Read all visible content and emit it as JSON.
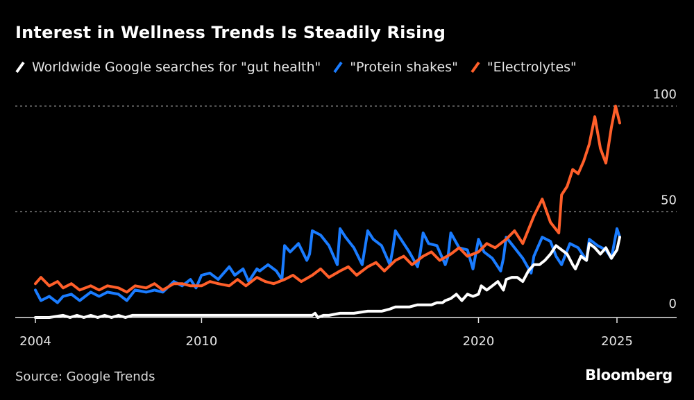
{
  "title": "Interest in Wellness Trends Is Steadily Rising",
  "source": "Source: Google Trends",
  "brand": "Bloomberg",
  "legend": [
    {
      "label": "Worldwide Google searches for \"gut health\"",
      "color": "#ffffff",
      "icon": "line-swatch-icon"
    },
    {
      "label": "\"Protein shakes\"",
      "color": "#1a7cff",
      "icon": "line-swatch-icon"
    },
    {
      "label": "\"Electrolytes\"",
      "color": "#ff5f2a",
      "icon": "line-swatch-icon"
    }
  ],
  "chart_data": {
    "type": "line",
    "title": "Interest in Wellness Trends Is Steadily Rising",
    "xlabel": "",
    "ylabel": "",
    "xlim": [
      2003.3,
      2027.5
    ],
    "ylim": [
      0,
      100
    ],
    "x_ticks": [
      2004,
      2010,
      2020,
      2025
    ],
    "x_tick_labels": [
      "2004",
      "2010",
      "2020",
      "2025"
    ],
    "y_ticks": [
      0,
      50,
      100
    ],
    "y_tick_labels": [
      "0",
      "50",
      "100"
    ],
    "grid": "horizontal dotted at 50 and 100",
    "legend_position": "top",
    "series": [
      {
        "name": "Worldwide Google searches for \"gut health\"",
        "color": "#ffffff",
        "x": [
          2004.0,
          2004.5,
          2005.0,
          2005.25,
          2005.5,
          2005.75,
          2006.0,
          2006.25,
          2006.5,
          2006.75,
          2007.0,
          2007.25,
          2007.5,
          2008.0,
          2009.0,
          2010.0,
          2011.0,
          2012.0,
          2013.0,
          2014.0,
          2014.1,
          2014.2,
          2014.4,
          2014.6,
          2015.0,
          2015.5,
          2016.0,
          2016.3,
          2016.5,
          2016.8,
          2017.0,
          2017.3,
          2017.5,
          2017.8,
          2018.0,
          2018.3,
          2018.5,
          2018.7,
          2018.8,
          2019.0,
          2019.2,
          2019.4,
          2019.6,
          2019.8,
          2020.0,
          2020.1,
          2020.3,
          2020.5,
          2020.7,
          2020.9,
          2021.0,
          2021.2,
          2021.4,
          2021.6,
          2021.8,
          2022.0,
          2022.2,
          2022.4,
          2022.6,
          2022.8,
          2023.0,
          2023.2,
          2023.4,
          2023.5,
          2023.7,
          2023.9,
          2024.0,
          2024.2,
          2024.4,
          2024.6,
          2024.8,
          2025.0,
          2025.1
        ],
        "values": [
          0,
          0,
          1,
          0,
          1,
          0,
          1,
          0,
          1,
          0,
          1,
          0,
          1,
          1,
          1,
          1,
          1,
          1,
          1,
          1,
          2,
          0,
          1,
          1,
          2,
          2,
          3,
          3,
          3,
          4,
          5,
          5,
          5,
          6,
          6,
          6,
          7,
          7,
          8,
          9,
          11,
          8,
          11,
          10,
          11,
          15,
          13,
          15,
          17,
          13,
          18,
          19,
          19,
          17,
          22,
          25,
          25,
          27,
          30,
          34,
          32,
          30,
          25,
          23,
          29,
          27,
          35,
          33,
          30,
          33,
          28,
          32,
          38
        ],
        "_note": "approximate monthly/quarterly readings, 0-100 scale"
      },
      {
        "name": "\"Protein shakes\"",
        "color": "#1a7cff",
        "x": [
          2004.0,
          2004.2,
          2004.5,
          2004.8,
          2005.0,
          2005.3,
          2005.6,
          2006.0,
          2006.3,
          2006.6,
          2007.0,
          2007.3,
          2007.6,
          2008.0,
          2008.3,
          2008.6,
          2009.0,
          2009.3,
          2009.6,
          2009.8,
          2010.0,
          2010.3,
          2010.6,
          2011.0,
          2011.2,
          2011.5,
          2011.7,
          2012.0,
          2012.1,
          2012.4,
          2012.7,
          2012.9,
          2013.0,
          2013.2,
          2013.5,
          2013.8,
          2013.9,
          2014.0,
          2014.3,
          2014.6,
          2014.9,
          2015.0,
          2015.2,
          2015.5,
          2015.8,
          2015.9,
          2016.0,
          2016.2,
          2016.5,
          2016.8,
          2016.9,
          2017.0,
          2017.2,
          2017.5,
          2017.8,
          2017.9,
          2018.0,
          2018.2,
          2018.5,
          2018.8,
          2018.9,
          2019.0,
          2019.3,
          2019.6,
          2019.8,
          2019.9,
          2020.0,
          2020.2,
          2020.5,
          2020.8,
          2020.9,
          2021.0,
          2021.3,
          2021.6,
          2021.9,
          2022.0,
          2022.3,
          2022.6,
          2022.8,
          2023.0,
          2023.3,
          2023.6,
          2023.9,
          2024.0,
          2024.3,
          2024.6,
          2024.8,
          2025.0,
          2025.1
        ],
        "values": [
          13,
          8,
          10,
          7,
          10,
          11,
          8,
          12,
          10,
          12,
          11,
          8,
          13,
          12,
          13,
          12,
          17,
          15,
          18,
          14,
          20,
          21,
          18,
          24,
          20,
          23,
          17,
          23,
          22,
          25,
          22,
          18,
          34,
          31,
          35,
          27,
          30,
          41,
          39,
          34,
          25,
          42,
          38,
          33,
          25,
          33,
          41,
          37,
          34,
          25,
          32,
          41,
          37,
          31,
          24,
          31,
          40,
          35,
          34,
          25,
          29,
          40,
          33,
          32,
          23,
          30,
          37,
          31,
          28,
          22,
          28,
          38,
          33,
          28,
          21,
          29,
          38,
          36,
          29,
          25,
          35,
          33,
          27,
          37,
          34,
          32,
          28,
          42,
          38
        ],
        "_note": "approximate readings, strong January seasonality"
      },
      {
        "name": "\"Electrolytes\"",
        "color": "#ff5f2a",
        "x": [
          2004.0,
          2004.2,
          2004.5,
          2004.8,
          2005.0,
          2005.3,
          2005.6,
          2006.0,
          2006.3,
          2006.6,
          2007.0,
          2007.3,
          2007.6,
          2008.0,
          2008.3,
          2008.6,
          2009.0,
          2009.3,
          2009.6,
          2010.0,
          2010.3,
          2010.6,
          2011.0,
          2011.3,
          2011.6,
          2012.0,
          2012.3,
          2012.6,
          2013.0,
          2013.3,
          2013.6,
          2014.0,
          2014.3,
          2014.6,
          2015.0,
          2015.3,
          2015.6,
          2016.0,
          2016.3,
          2016.6,
          2017.0,
          2017.3,
          2017.6,
          2018.0,
          2018.3,
          2018.6,
          2019.0,
          2019.3,
          2019.6,
          2020.0,
          2020.3,
          2020.6,
          2021.0,
          2021.3,
          2021.6,
          2022.0,
          2022.3,
          2022.6,
          2022.9,
          2023.0,
          2023.2,
          2023.4,
          2023.6,
          2023.8,
          2024.0,
          2024.2,
          2024.4,
          2024.6,
          2024.8,
          2024.95,
          2025.1
        ],
        "values": [
          16,
          19,
          15,
          17,
          14,
          16,
          13,
          15,
          13,
          15,
          14,
          12,
          15,
          14,
          16,
          13,
          16,
          16,
          15,
          15,
          17,
          16,
          15,
          18,
          15,
          19,
          17,
          16,
          18,
          20,
          17,
          20,
          23,
          19,
          22,
          24,
          20,
          24,
          26,
          22,
          27,
          29,
          25,
          29,
          31,
          27,
          30,
          33,
          29,
          31,
          35,
          33,
          37,
          41,
          35,
          48,
          56,
          45,
          40,
          58,
          62,
          70,
          68,
          74,
          82,
          95,
          80,
          73,
          90,
          100,
          92
        ],
        "_note": "approximate readings, peak of 100 near end of 2024/early 2025"
      }
    ]
  }
}
